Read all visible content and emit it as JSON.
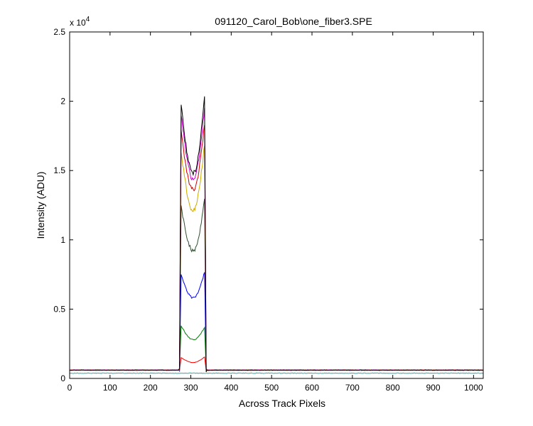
{
  "chart_data": {
    "type": "line",
    "title": "091120_Carol_Bob\\one_fiber3.SPE",
    "xlabel": "Across Track Pixels",
    "ylabel": "Intensity (ADU)",
    "y_multiplier_label": "x 10",
    "y_multiplier_exponent": "4",
    "xlim": [
      0,
      1024
    ],
    "ylim": [
      0,
      25000
    ],
    "x_ticks": [
      "0",
      "100",
      "200",
      "300",
      "400",
      "500",
      "600",
      "700",
      "800",
      "900",
      "1000"
    ],
    "y_ticks": [
      "0",
      "0.5",
      "1",
      "1.5",
      "2",
      "2.5"
    ],
    "x_tick_values": [
      0,
      100,
      200,
      300,
      400,
      500,
      600,
      700,
      800,
      900,
      1000
    ],
    "y_tick_values": [
      0,
      5000,
      10000,
      15000,
      20000,
      25000
    ],
    "grid": false,
    "legend": "none",
    "series_profile_note_shape": [
      [
        0,
        0
      ],
      [
        272,
        0
      ],
      [
        276,
        1
      ],
      [
        286,
        0.88
      ],
      [
        300,
        0.7
      ],
      [
        308,
        0.68
      ],
      [
        318,
        0.74
      ],
      [
        328,
        0.9
      ],
      [
        333,
        1.02
      ],
      [
        338,
        0
      ],
      [
        1024,
        0
      ]
    ],
    "series": [
      {
        "color": "#ff0000",
        "baseline": 600,
        "peak_left": 1500,
        "dip": 1150,
        "peak_right": 1550
      },
      {
        "color": "#008000",
        "baseline": 600,
        "peak_left": 3800,
        "dip": 2800,
        "peak_right": 3700
      },
      {
        "color": "#0000ff",
        "baseline": 600,
        "peak_left": 7500,
        "dip": 5800,
        "peak_right": 7700
      },
      {
        "color": "#2f4f2f",
        "baseline": 600,
        "peak_left": 12400,
        "dip": 9200,
        "peak_right": 12900
      },
      {
        "color": "#ccaa00",
        "baseline": 600,
        "peak_left": 16400,
        "dip": 12100,
        "peak_right": 16900
      },
      {
        "color": "#cc0000",
        "baseline": 600,
        "peak_left": 17800,
        "dip": 13600,
        "peak_right": 18400
      },
      {
        "color": "#cc00cc",
        "baseline": 600,
        "peak_left": 19100,
        "dip": 14400,
        "peak_right": 19600
      },
      {
        "color": "#000000",
        "baseline": 600,
        "peak_left": 19800,
        "dip": 14800,
        "peak_right": 20400
      },
      {
        "color": "#00bfbf",
        "baseline": 380,
        "peak_left": 380,
        "dip": 380,
        "peak_right": 380
      }
    ]
  }
}
